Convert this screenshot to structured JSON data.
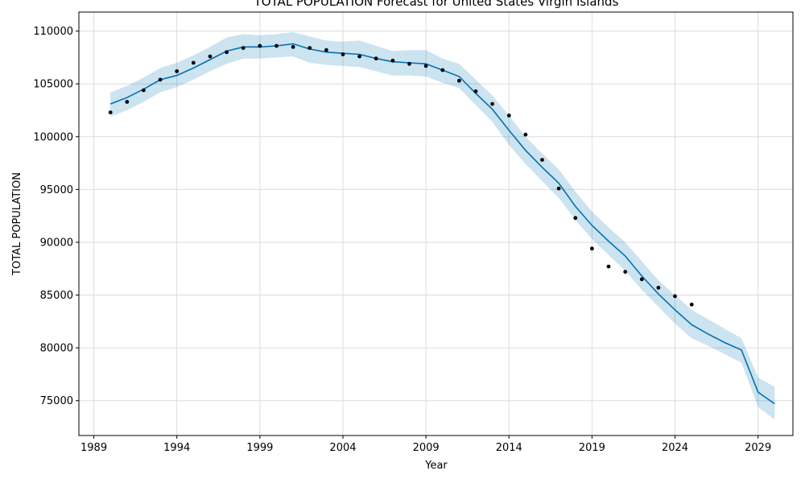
{
  "chart_data": {
    "type": "line",
    "title": "TOTAL POPULATION Forecast for United States Virgin Islands",
    "xlabel": "Year",
    "ylabel": "TOTAL POPULATION",
    "xlim": [
      1988.1,
      2031.1
    ],
    "ylim": [
      71700,
      111800
    ],
    "x_ticks": [
      1989,
      1994,
      1999,
      2004,
      2009,
      2014,
      2019,
      2024,
      2029
    ],
    "y_ticks": [
      75000,
      80000,
      85000,
      90000,
      95000,
      100000,
      105000,
      110000
    ],
    "grid": true,
    "colors": {
      "forecast": "#0072B2",
      "band": "#0072B2",
      "observed": "#000000"
    },
    "series": [
      {
        "kind": "observed",
        "x": [
          1990,
          1991,
          1992,
          1993,
          1994,
          1995,
          1996,
          1997,
          1998,
          1999,
          2000,
          2001,
          2002,
          2003,
          2004,
          2005,
          2006,
          2007,
          2008,
          2009,
          2010,
          2011,
          2012,
          2013,
          2014,
          2015,
          2016,
          2017,
          2018,
          2019,
          2020,
          2021,
          2022,
          2023,
          2024,
          2025
        ],
        "y": [
          102300,
          103300,
          104400,
          105400,
          106200,
          107000,
          107600,
          108000,
          108400,
          108600,
          108600,
          108500,
          108400,
          108200,
          107800,
          107600,
          107400,
          107200,
          106900,
          106700,
          106300,
          105300,
          104300,
          103100,
          102000,
          100200,
          97800,
          95100,
          92300,
          89400,
          87700,
          87200,
          86500,
          85700,
          84900,
          84100
        ]
      },
      {
        "kind": "forecast",
        "x": [
          1990,
          1991,
          1992,
          1993,
          1994,
          1995,
          1996,
          1997,
          1998,
          1999,
          2000,
          2001,
          2002,
          2003,
          2004,
          2005,
          2006,
          2007,
          2008,
          2009,
          2010,
          2011,
          2012,
          2013,
          2014,
          2015,
          2016,
          2017,
          2018,
          2019,
          2020,
          2021,
          2022,
          2023,
          2024,
          2025,
          2026,
          2027,
          2028,
          2029,
          2030
        ],
        "y": [
          103100,
          103700,
          104500,
          105400,
          105800,
          106500,
          107300,
          108100,
          108500,
          108500,
          108600,
          108800,
          108300,
          108000,
          107900,
          107800,
          107400,
          107100,
          107000,
          106900,
          106300,
          105700,
          104100,
          102600,
          100600,
          98700,
          97100,
          95600,
          93400,
          91600,
          90100,
          88700,
          86800,
          85100,
          83600,
          82200,
          81300,
          80500,
          79800,
          75800,
          74700
        ],
        "lower": [
          101900,
          102500,
          103300,
          104200,
          104700,
          105400,
          106200,
          106900,
          107400,
          107400,
          107500,
          107600,
          107000,
          106800,
          106700,
          106600,
          106200,
          105800,
          105800,
          105700,
          105100,
          104600,
          103000,
          101400,
          99200,
          97400,
          95800,
          94200,
          92100,
          90300,
          88800,
          87300,
          85500,
          83900,
          82300,
          80900,
          80200,
          79400,
          78600,
          74400,
          73200
        ],
        "upper": [
          104200,
          104800,
          105600,
          106500,
          107000,
          107700,
          108500,
          109400,
          109700,
          109600,
          109700,
          109900,
          109500,
          109100,
          109000,
          109100,
          108600,
          108100,
          108200,
          108200,
          107400,
          106900,
          105400,
          103900,
          102000,
          100000,
          98400,
          96900,
          94800,
          92900,
          91400,
          90000,
          88200,
          86400,
          85000,
          83600,
          82700,
          81800,
          80900,
          77200,
          76300
        ]
      }
    ]
  }
}
